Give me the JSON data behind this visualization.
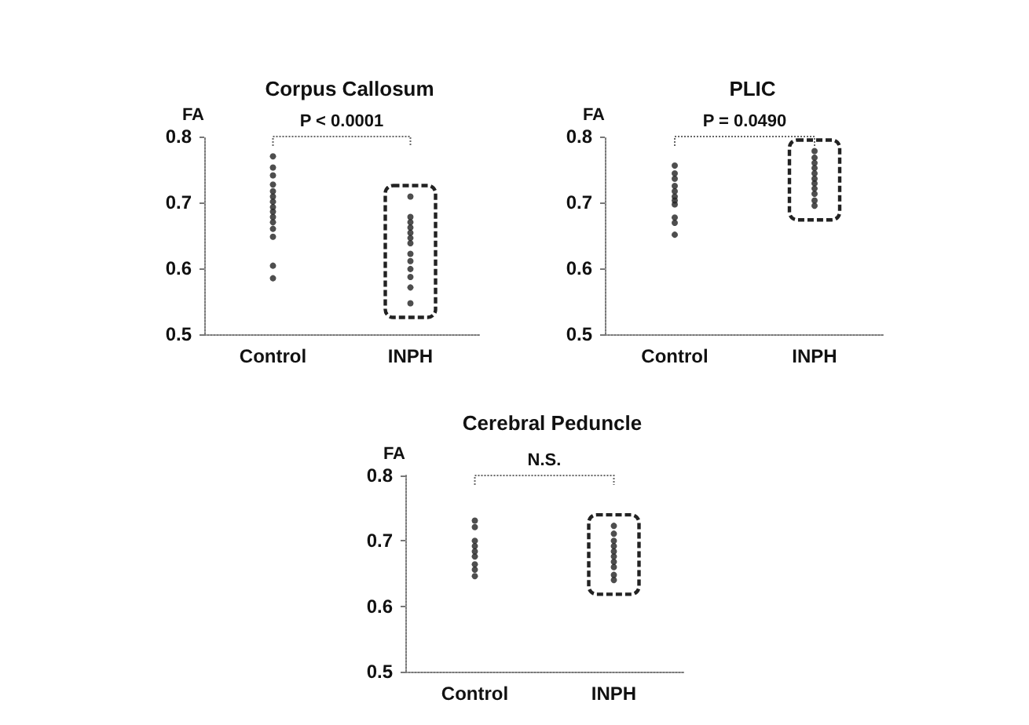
{
  "chart_data": [
    {
      "type": "scatter",
      "title": "Corpus Callosum",
      "ylabel": "FA",
      "categories": [
        "Control",
        "INPH"
      ],
      "ylim": [
        0.5,
        0.8
      ],
      "yticks": [
        0.5,
        0.6,
        0.7,
        0.8
      ],
      "grid": false,
      "marker": "circle",
      "annotations": [
        "P < 0.0001"
      ],
      "series": [
        {
          "color": "#222222",
          "x": [
            "Control",
            "Control",
            "Control",
            "Control",
            "Control",
            "Control",
            "Control",
            "Control",
            "Control",
            "Control",
            "Control",
            "Control",
            "Control",
            "Control",
            "Control"
          ],
          "values": [
            0.77,
            0.753,
            0.741,
            0.727,
            0.717,
            0.709,
            0.701,
            0.693,
            0.686,
            0.678,
            0.67,
            0.66,
            0.648,
            0.604,
            0.585
          ]
        },
        {
          "color": "#222222",
          "x": [
            "INPH",
            "INPH",
            "INPH",
            "INPH",
            "INPH",
            "INPH",
            "INPH",
            "INPH",
            "INPH",
            "INPH",
            "INPH",
            "INPH",
            "INPH"
          ],
          "values": [
            0.709,
            0.678,
            0.67,
            0.662,
            0.654,
            0.646,
            0.638,
            0.622,
            0.611,
            0.599,
            0.587,
            0.571,
            0.547
          ]
        }
      ]
    },
    {
      "type": "scatter",
      "title": "PLIC",
      "ylabel": "FA",
      "categories": [
        "Control",
        "INPH"
      ],
      "ylim": [
        0.5,
        0.8
      ],
      "yticks": [
        0.5,
        0.6,
        0.7,
        0.8
      ],
      "grid": false,
      "marker": "circle",
      "annotations": [
        "P = 0.0490"
      ],
      "series": [
        {
          "color": "#222222",
          "x": [
            "Control",
            "Control",
            "Control",
            "Control",
            "Control",
            "Control",
            "Control",
            "Control",
            "Control",
            "Control",
            "Control"
          ],
          "values": [
            0.756,
            0.744,
            0.736,
            0.725,
            0.717,
            0.709,
            0.703,
            0.697,
            0.677,
            0.669,
            0.651
          ]
        },
        {
          "color": "#222222",
          "x": [
            "INPH",
            "INPH",
            "INPH",
            "INPH",
            "INPH",
            "INPH",
            "INPH",
            "INPH",
            "INPH",
            "INPH",
            "INPH"
          ],
          "values": [
            0.778,
            0.768,
            0.76,
            0.752,
            0.744,
            0.736,
            0.729,
            0.721,
            0.713,
            0.703,
            0.695
          ]
        }
      ]
    },
    {
      "type": "scatter",
      "title": "Cerebral Peduncle",
      "ylabel": "FA",
      "categories": [
        "Control",
        "INPH"
      ],
      "ylim": [
        0.5,
        0.8
      ],
      "yticks": [
        0.5,
        0.6,
        0.7,
        0.8
      ],
      "grid": false,
      "marker": "circle",
      "annotations": [
        "N.S."
      ],
      "series": [
        {
          "color": "#222222",
          "x": [
            "Control",
            "Control",
            "Control",
            "Control",
            "Control",
            "Control",
            "Control",
            "Control",
            "Control"
          ],
          "values": [
            0.731,
            0.721,
            0.7,
            0.692,
            0.684,
            0.676,
            0.664,
            0.656,
            0.646
          ]
        },
        {
          "color": "#222222",
          "x": [
            "INPH",
            "INPH",
            "INPH",
            "INPH",
            "INPH",
            "INPH",
            "INPH",
            "INPH",
            "INPH",
            "INPH"
          ],
          "values": [
            0.723,
            0.711,
            0.7,
            0.692,
            0.684,
            0.676,
            0.668,
            0.66,
            0.648,
            0.64
          ]
        }
      ]
    }
  ]
}
